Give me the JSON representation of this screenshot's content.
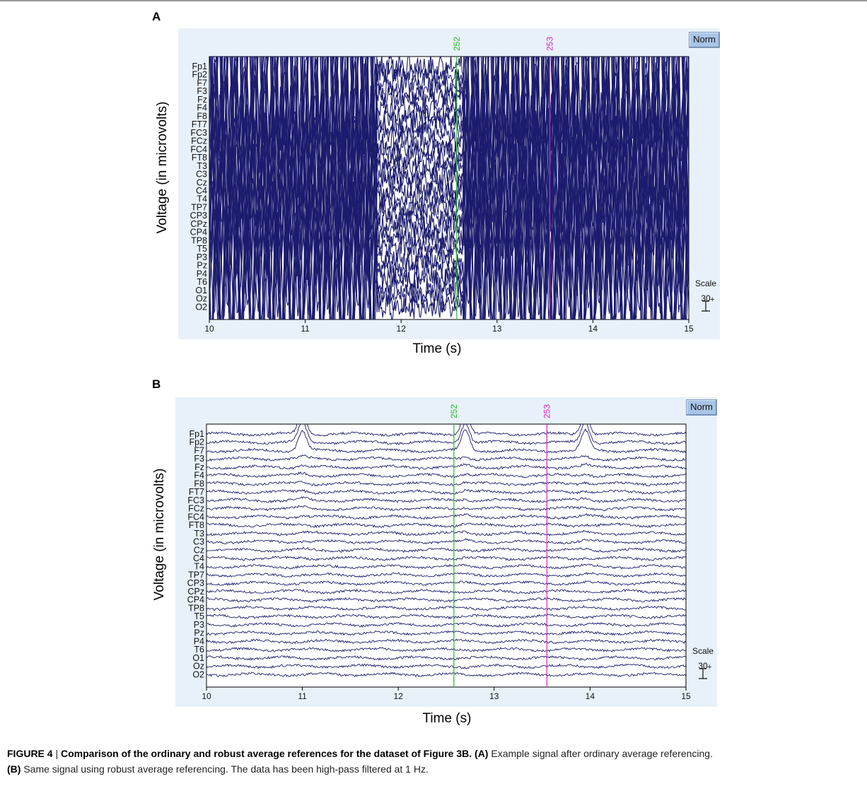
{
  "figure": {
    "caption_label": "FIGURE 4",
    "caption_sep": " | ",
    "caption_title": "Comparison of the ordinary and robust average references for the dataset of Figure 3B.",
    "caption_a_tag": "(A)",
    "caption_a_text": " Example signal after ordinary average referencing.",
    "caption_b_tag": "(B)",
    "caption_b_text": " Same signal using robust average referencing. The data has been high-pass filtered at 1 Hz."
  },
  "colors": {
    "trace": "#1c1c6e",
    "marker_252": "#22bb22",
    "marker_253": "#e020c0",
    "panel_bg": "#e8f1fa"
  },
  "chart_data": [
    {
      "type": "line",
      "panel": "A",
      "xlabel": "Time (s)",
      "ylabel": "Voltage (in microvolts)",
      "xlim": [
        10,
        15
      ],
      "x_ticks": [
        "10",
        "11",
        "12",
        "13",
        "14",
        "15"
      ],
      "channels": [
        "Fp1",
        "Fp2",
        "F7",
        "F3",
        "Fz",
        "F4",
        "F8",
        "FT7",
        "FC3",
        "FCz",
        "FC4",
        "FT8",
        "T3",
        "C3",
        "Cz",
        "C4",
        "T4",
        "TP7",
        "CP3",
        "CPz",
        "CP4",
        "TP8",
        "T5",
        "P3",
        "Pz",
        "P4",
        "T6",
        "O1",
        "Oz",
        "O2"
      ],
      "events": [
        {
          "label": "252",
          "x": 12.58,
          "color": "#22bb22"
        },
        {
          "label": "253",
          "x": 13.55,
          "color": "#e020c0"
        }
      ],
      "button": "Norm",
      "scale_label": "Scale",
      "scale_value": "30",
      "noise_level": "high",
      "grid": false
    },
    {
      "type": "line",
      "panel": "B",
      "xlabel": "Time (s)",
      "ylabel": "Voltage (in microvolts)",
      "xlim": [
        10,
        15
      ],
      "x_ticks": [
        "10",
        "11",
        "12",
        "13",
        "14",
        "15"
      ],
      "channels": [
        "Fp1",
        "Fp2",
        "F7",
        "F3",
        "Fz",
        "F4",
        "F8",
        "FT7",
        "FC3",
        "FCz",
        "FC4",
        "FT8",
        "T3",
        "C3",
        "Cz",
        "C4",
        "T4",
        "TP7",
        "CP3",
        "CPz",
        "CP4",
        "TP8",
        "T5",
        "P3",
        "Pz",
        "P4",
        "T6",
        "O1",
        "Oz",
        "O2"
      ],
      "events": [
        {
          "label": "252",
          "x": 12.58,
          "color": "#22bb22"
        },
        {
          "label": "253",
          "x": 13.55,
          "color": "#e020c0"
        }
      ],
      "button": "Norm",
      "scale_label": "Scale",
      "scale_value": "30",
      "noise_level": "low",
      "grid": false
    }
  ]
}
